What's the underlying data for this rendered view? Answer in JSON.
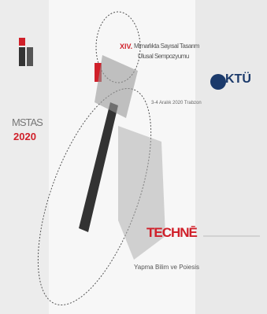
{
  "left": {
    "title": "MSTAS",
    "year": "2020"
  },
  "header": {
    "edition": "XIV.",
    "title_line1": "Mimarlıkta Sayısal Tasarım",
    "title_line2": "Ulusal Sempozyumu",
    "date": "3-4 Aralık 2020 Trabzon"
  },
  "theme": {
    "title": "TECHNĒ",
    "subtitle": "Yapma Bilim ve Poiesis"
  },
  "logo": {
    "text": "KTÜ"
  }
}
